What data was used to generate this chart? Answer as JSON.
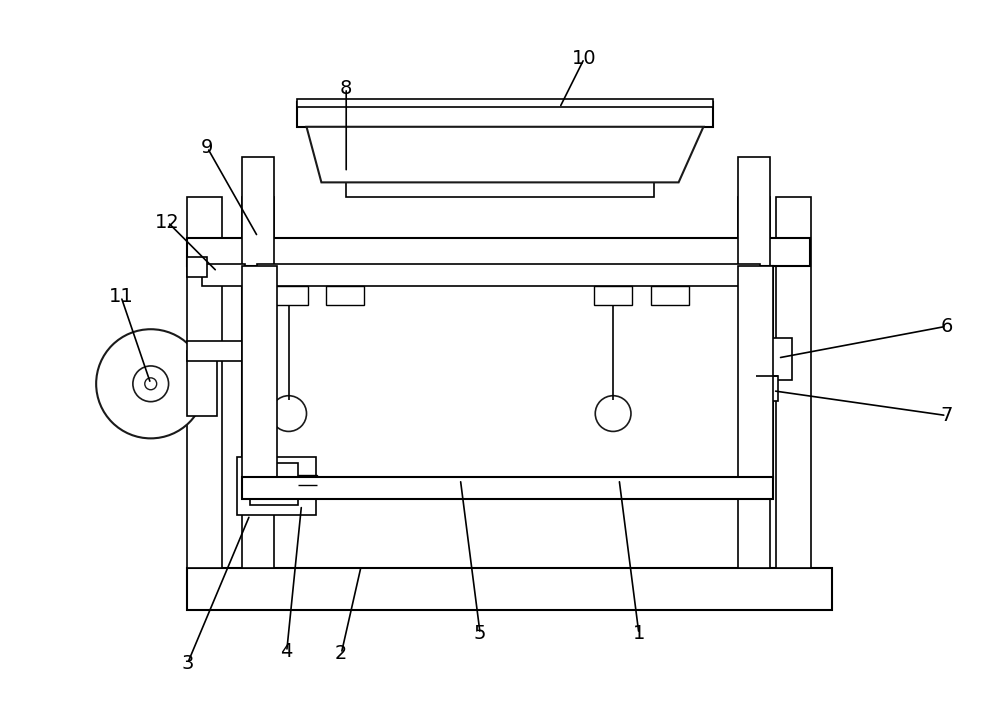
{
  "bg_color": "#ffffff",
  "line_color": "#1a1a1a",
  "lw": 1.5,
  "lw2": 1.2,
  "lw3": 1.0,
  "fig_width": 10.0,
  "fig_height": 7.16,
  "dpi": 100
}
